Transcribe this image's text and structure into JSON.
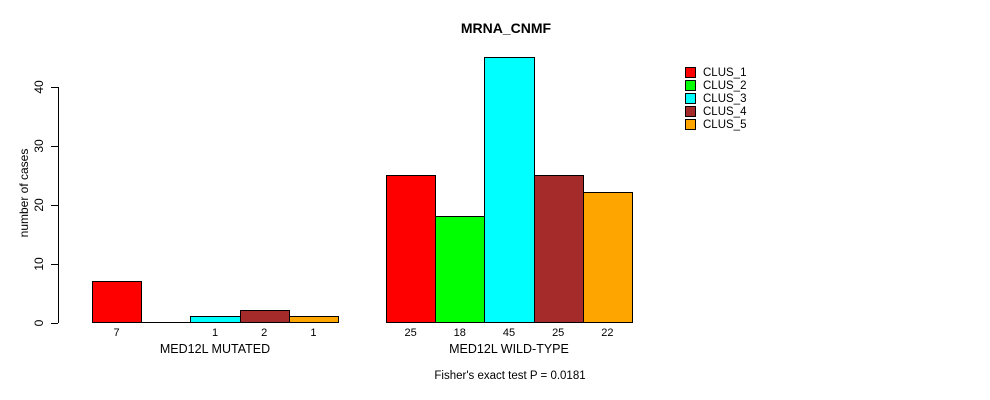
{
  "chart_data": {
    "type": "bar",
    "title": "MRNA_CNMF",
    "ylabel": "number of cases",
    "xlabel": "",
    "yticks": [
      0,
      10,
      20,
      30,
      40
    ],
    "ylim": [
      0,
      45
    ],
    "grid": false,
    "legend_position": "right-outside",
    "categories": [
      "MED12L MUTATED",
      "MED12L WILD-TYPE"
    ],
    "series": [
      {
        "name": "CLUS_1",
        "color": "#ff0000",
        "values": [
          7,
          25
        ]
      },
      {
        "name": "CLUS_2",
        "color": "#00ff00",
        "values": [
          0,
          18
        ]
      },
      {
        "name": "CLUS_3",
        "color": "#00ffff",
        "values": [
          1,
          45
        ]
      },
      {
        "name": "CLUS_4",
        "color": "#a52a2a",
        "values": [
          2,
          25
        ]
      },
      {
        "name": "CLUS_5",
        "color": "#ffa500",
        "values": [
          1,
          22
        ]
      }
    ],
    "bar_value_labels": [
      [
        "7",
        "",
        "1",
        "2",
        "1"
      ],
      [
        "25",
        "18",
        "45",
        "25",
        "22"
      ]
    ],
    "footer": "Fisher's exact test P = 0.0181"
  }
}
